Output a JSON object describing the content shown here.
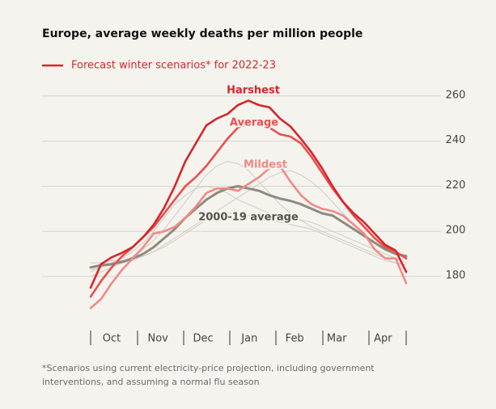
{
  "chart_data": {
    "type": "line",
    "title": "Europe, average weekly deaths per million people",
    "legend_label": "Forecast winter scenarios* for 2022-23",
    "legend_color": "#d7262b",
    "footnote": "*Scenarios using current electricity-price projection, including government interventions, and assuming a normal flu season",
    "x": [
      0,
      1,
      2,
      3,
      4,
      5,
      6,
      7,
      8,
      9,
      10,
      11,
      12,
      13,
      14,
      15,
      16,
      17,
      18,
      19,
      20,
      21,
      22,
      23,
      24,
      25,
      26,
      27,
      28,
      29,
      30
    ],
    "xlim": [
      0,
      30
    ],
    "xticks": [
      {
        "value": 2.0,
        "label": "Oct"
      },
      {
        "value": 6.4,
        "label": "Nov"
      },
      {
        "value": 10.7,
        "label": "Dec"
      },
      {
        "value": 15.1,
        "label": "Jan"
      },
      {
        "value": 19.4,
        "label": "Feb"
      },
      {
        "value": 23.4,
        "label": "Mar"
      },
      {
        "value": 27.8,
        "label": "Apr"
      }
    ],
    "ylim": [
      165,
      265
    ],
    "yticks": [
      180,
      200,
      220,
      240,
      260
    ],
    "grid": true,
    "series": [
      {
        "color": "#cfccc4",
        "values": [
          182,
          184,
          186,
          188,
          191,
          195,
          200,
          206,
          212,
          216,
          219,
          220,
          219,
          217,
          214,
          212,
          210,
          208,
          207,
          206,
          205,
          204,
          202,
          200,
          198,
          196,
          194,
          192,
          190,
          188,
          186
        ]
      },
      {
        "color": "#cfccc4",
        "values": [
          183,
          184,
          185,
          186,
          187,
          189,
          191,
          194,
          197,
          200,
          203,
          206,
          209,
          212,
          215,
          218,
          221,
          224,
          226,
          227,
          225,
          222,
          218,
          213,
          208,
          203,
          199,
          195,
          192,
          190,
          188
        ]
      },
      {
        "color": "#cfccc4",
        "values": [
          180,
          182,
          184,
          186,
          189,
          192,
          196,
          201,
          207,
          213,
          219,
          225,
          229,
          231,
          230,
          227,
          222,
          217,
          212,
          208,
          205,
          202,
          200,
          198,
          196,
          194,
          192,
          190,
          188,
          186,
          185
        ]
      },
      {
        "color": "#cfccc4",
        "values": [
          186,
          186,
          187,
          187,
          188,
          189,
          191,
          193,
          196,
          199,
          202,
          205,
          207,
          208,
          208,
          207,
          206,
          205,
          204,
          203,
          202,
          201,
          199,
          197,
          195,
          193,
          191,
          189,
          187,
          186,
          185
        ]
      },
      {
        "name": "2000-19 average",
        "color": "#8c8b7e",
        "values": [
          184,
          185,
          185.5,
          186.5,
          188,
          190,
          193,
          197,
          201,
          206,
          210,
          214,
          217,
          219,
          220,
          219,
          218,
          216,
          214.5,
          213.5,
          212,
          210,
          208,
          207,
          204,
          201,
          198,
          195,
          192,
          190,
          189
        ]
      },
      {
        "name": "Mildest",
        "color": "#f08a87",
        "values": [
          166,
          170,
          177,
          183,
          188,
          193,
          199,
          200,
          202,
          206,
          211,
          217,
          219,
          219,
          218,
          221,
          224,
          228,
          229,
          222,
          216,
          212,
          210,
          209,
          207,
          203,
          199,
          192,
          188,
          188,
          177
        ]
      },
      {
        "name": "Average",
        "color": "#e8504f",
        "values": [
          171,
          178,
          184,
          189,
          193,
          197.5,
          202,
          208,
          214,
          220,
          224,
          229,
          235,
          241,
          246,
          248,
          247,
          246,
          243,
          242,
          239,
          233,
          226,
          219,
          213,
          207,
          202,
          197,
          193,
          191,
          188
        ]
      },
      {
        "name": "Harshest",
        "color": "#d7262b",
        "values": [
          175,
          185.5,
          188.5,
          190.5,
          193,
          197.5,
          203,
          210.5,
          220,
          231,
          239,
          247,
          250,
          252,
          256,
          258,
          256,
          255,
          250,
          246.5,
          241,
          235,
          228,
          220,
          213,
          208,
          204,
          199,
          194,
          191.5,
          182
        ]
      }
    ]
  }
}
